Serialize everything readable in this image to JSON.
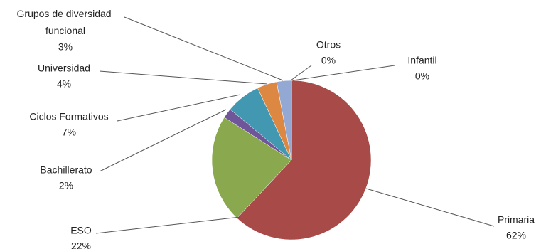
{
  "chart_data": {
    "type": "pie",
    "categories": [
      "Infantil",
      "Primaria",
      "ESO",
      "Bachillerato",
      "Ciclos Formativos",
      "Universidad",
      "Grupos de diversidad funcional",
      "Otros"
    ],
    "values": [
      0,
      62,
      22,
      2,
      7,
      4,
      3,
      0
    ],
    "value_labels": [
      "0%",
      "62%",
      "22%",
      "2%",
      "7%",
      "4%",
      "3%",
      "0%"
    ],
    "colors": [
      "#4f81bd",
      "#a84a47",
      "#8aa84d",
      "#6f569a",
      "#4298b0",
      "#dc8842",
      "#93a9d4",
      "#4f81bd"
    ]
  }
}
